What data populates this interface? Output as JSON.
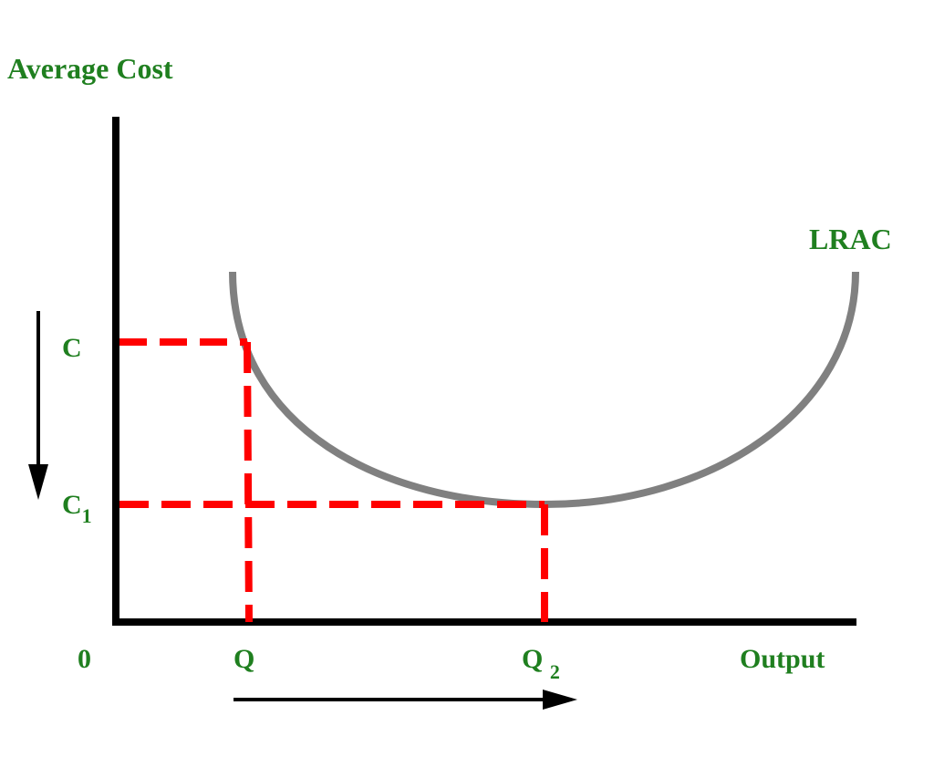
{
  "diagram": {
    "y_axis_label": "Average Cost",
    "x_axis_label": "Output",
    "origin_label": "0",
    "curve_label": "LRAC",
    "cost_levels": [
      {
        "base": "C",
        "sub": ""
      },
      {
        "base": "C",
        "sub": "1"
      }
    ],
    "output_levels": [
      {
        "base": "Q",
        "sub": ""
      },
      {
        "base": "Q ",
        "sub": "2"
      }
    ],
    "colors": {
      "axis": "#000000",
      "curve": "#808080",
      "guides": "#ff0000",
      "labels": "#1f7f1f",
      "arrows": "#000000"
    },
    "arrows": {
      "cost": "down",
      "output": "right"
    }
  }
}
